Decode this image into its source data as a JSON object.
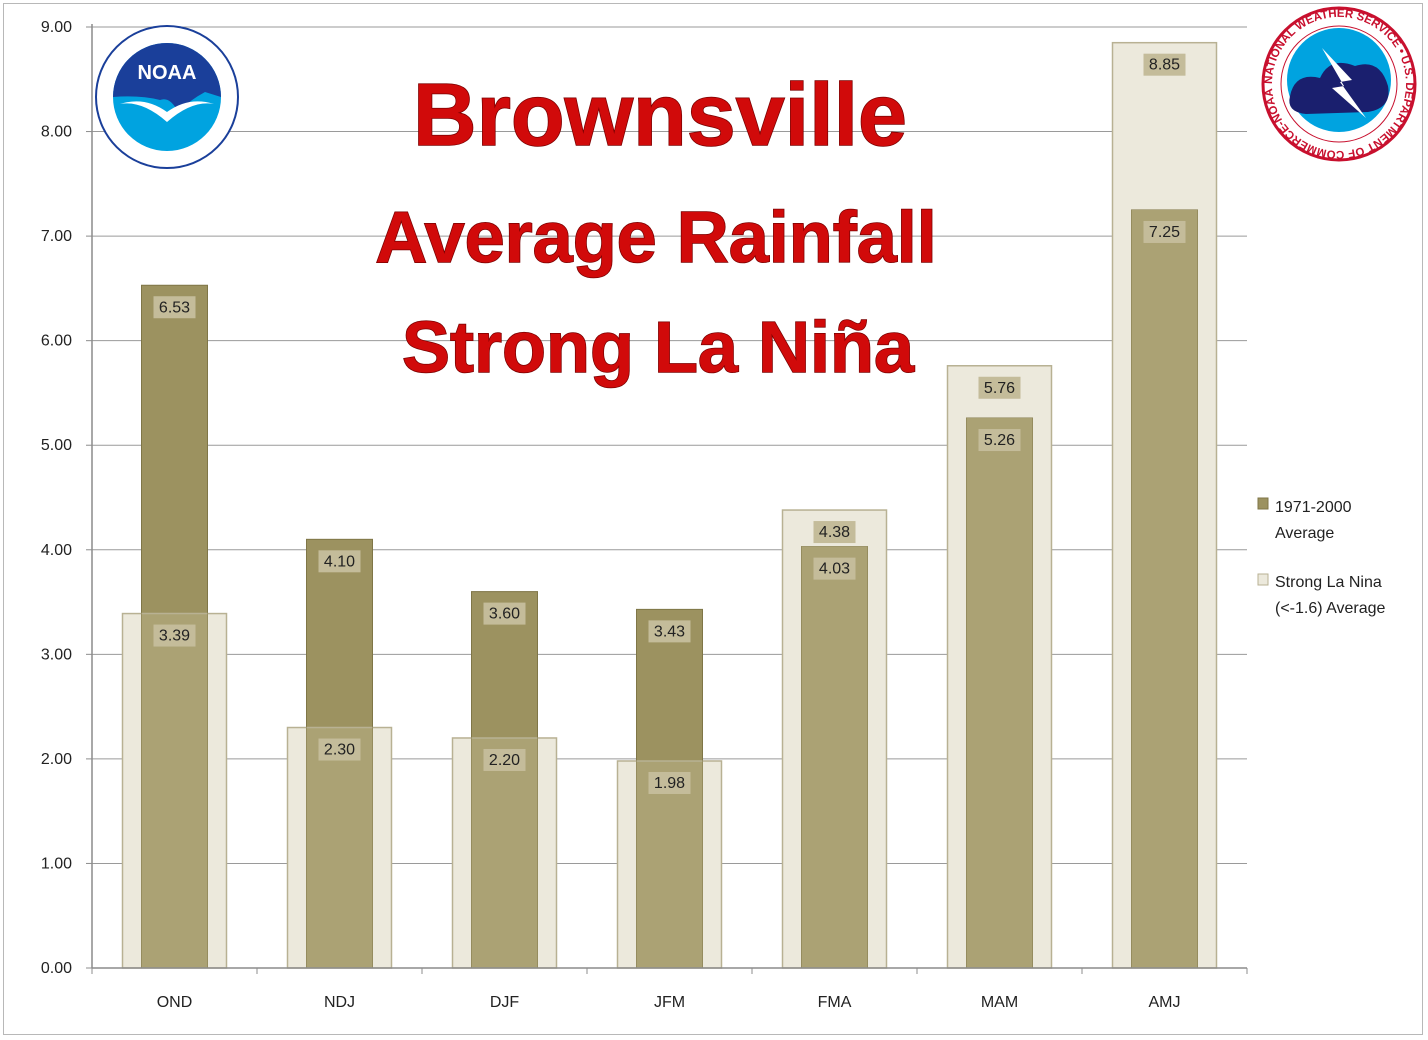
{
  "colors": {
    "average": "#9c9260",
    "average_stroke": "#7f7647",
    "lanina_fill": "#ece9dc",
    "lanina_stroke": "#b8b193",
    "overlap": "#aba274",
    "label_box": "#c4bc9a",
    "title": "#d10a0a",
    "grid": "#9a9a9a",
    "noaa_blue": "#1a3f9a",
    "nws_red": "#c8102e"
  },
  "logos": {
    "noaa": {
      "text": "NOAA",
      "icon": "noaa-seagull-logo"
    },
    "nws": {
      "icon": "nws-lightning-logo",
      "ring_text": "NATIONAL WEATHER SERVICE • U.S. DEPARTMENT OF COMMERCE-NOAA"
    }
  },
  "chart_data": {
    "type": "bar",
    "title_lines": [
      "Brownsville",
      "Average Rainfall",
      "Strong La Niña"
    ],
    "categories": [
      "OND",
      "NDJ",
      "DJF",
      "JFM",
      "FMA",
      "MAM",
      "AMJ"
    ],
    "series": [
      {
        "name": "1971-2000 Average",
        "legend_lines": [
          "1971-2000",
          "Average"
        ],
        "values": [
          6.53,
          4.1,
          3.6,
          3.43,
          4.03,
          5.26,
          7.25
        ]
      },
      {
        "name": "Strong La Nina (<-1.6) Average",
        "legend_lines": [
          "Strong La Nina",
          "(<-1.6) Average"
        ],
        "values": [
          3.39,
          2.3,
          2.2,
          1.98,
          4.38,
          5.76,
          8.85
        ]
      }
    ],
    "ylim": [
      0,
      9
    ],
    "yticks": [
      "0.00",
      "1.00",
      "2.00",
      "3.00",
      "4.00",
      "5.00",
      "6.00",
      "7.00",
      "8.00",
      "9.00"
    ],
    "grid": true,
    "legend_position": "right"
  }
}
